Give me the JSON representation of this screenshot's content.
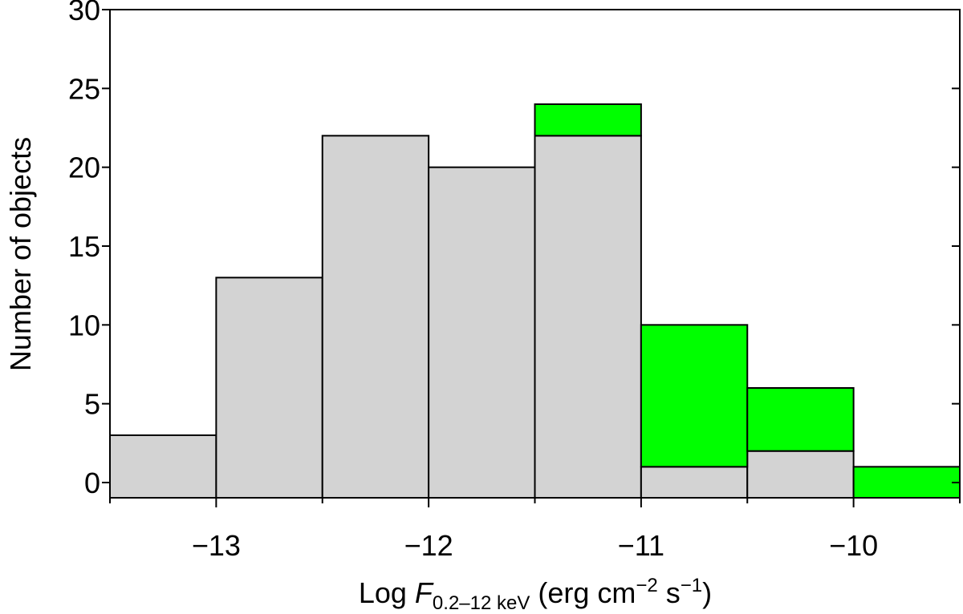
{
  "chart_data": {
    "type": "bar",
    "stacked": true,
    "bin_edges": [
      -13.5,
      -13,
      -12.5,
      -12,
      -11.5,
      -11,
      -10.5,
      -10,
      -9.5
    ],
    "series": [
      {
        "values": [
          3,
          13,
          22,
          20,
          22,
          1,
          2,
          0
        ],
        "color": "#d3d3d3"
      },
      {
        "values": [
          0,
          0,
          0,
          0,
          2,
          9,
          4,
          1
        ],
        "color": "#00ff00"
      }
    ],
    "xlim": [
      -13.5,
      -9.5
    ],
    "ylim": [
      0,
      30
    ],
    "xticks": [
      -13,
      -12,
      -11,
      -10
    ],
    "xtick_labels": [
      "−13",
      "−12",
      "−11",
      "−10"
    ],
    "yticks": [
      0,
      5,
      10,
      15,
      20,
      25,
      30
    ],
    "ylabel": "Number of objects",
    "xlabel": {
      "prefix": "Log ",
      "symbol": "F",
      "subscript": "0.2–12 keV",
      "units_1": " (erg cm",
      "sup_1": "−2",
      "units_2": " s",
      "sup_2": "−1",
      "units_3": ")"
    },
    "grid": false,
    "legend": "none"
  }
}
